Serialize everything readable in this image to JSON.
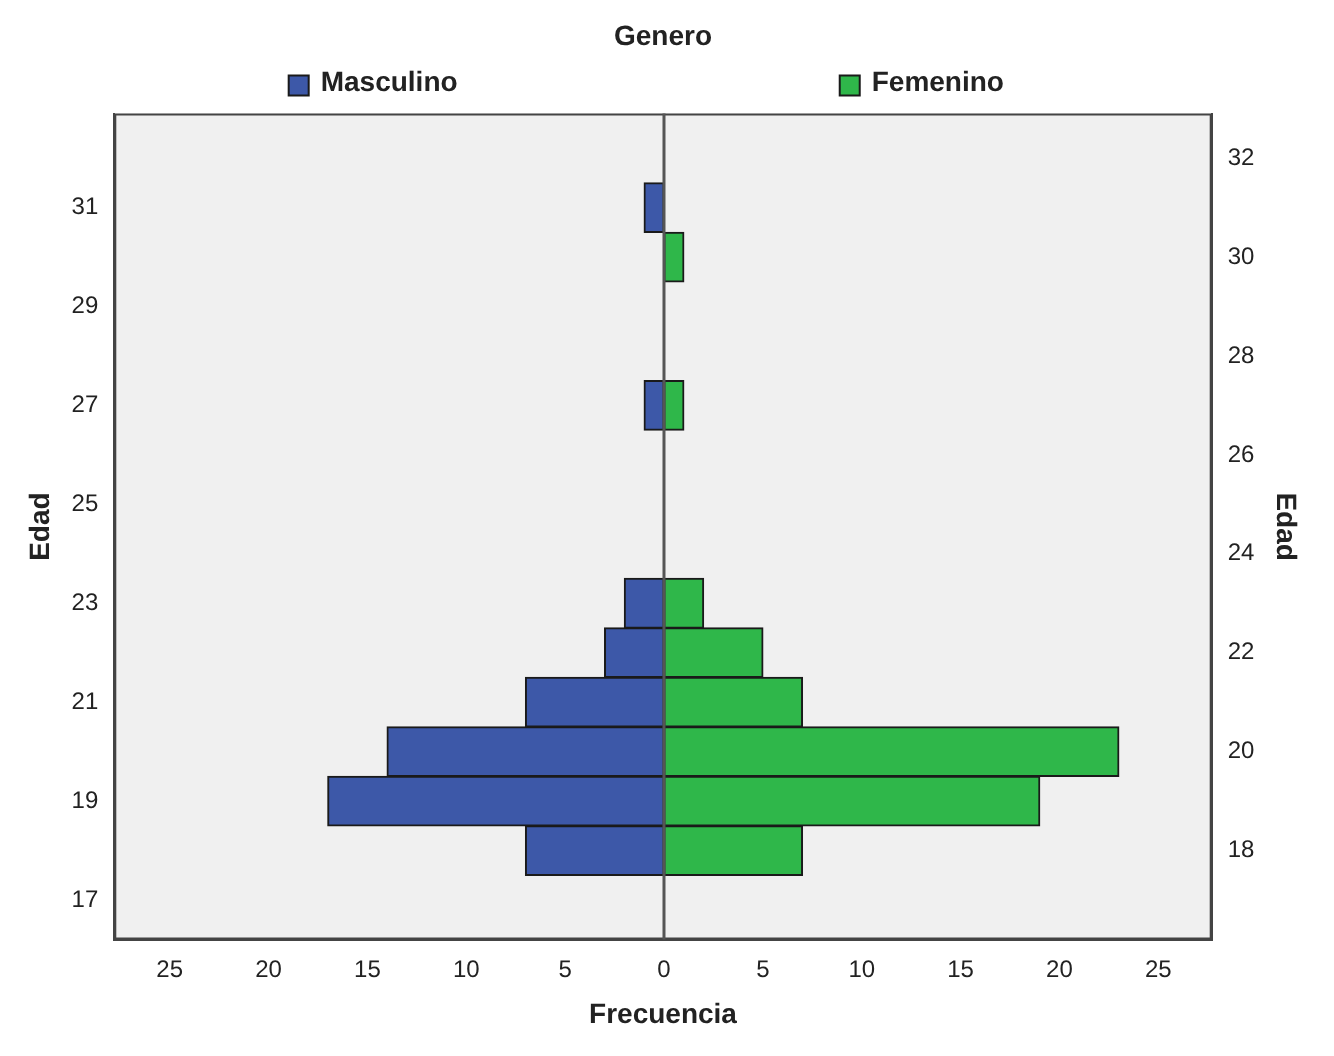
{
  "chart_data": {
    "type": "bar",
    "orientation": "horizontal",
    "stacked": true,
    "title": "Genero",
    "xlabel": "Frecuencia",
    "ylabel": "Edad",
    "y2label": "Edad",
    "xlim": [
      -27.8,
      27.7
    ],
    "xticks": [
      {
        "value": -25,
        "label": "25"
      },
      {
        "value": -20,
        "label": "20"
      },
      {
        "value": -15,
        "label": "15"
      },
      {
        "value": -10,
        "label": "10"
      },
      {
        "value": -5,
        "label": "5"
      },
      0,
      5,
      10,
      15,
      20,
      25
    ],
    "ylim": [
      16.2,
      32.9
    ],
    "yticks": [
      17,
      19,
      21,
      23,
      25,
      27,
      29,
      31
    ],
    "y2lim": [
      16.2,
      32.9
    ],
    "y2ticks": [
      18,
      20,
      22,
      24,
      26,
      28,
      30,
      32
    ],
    "series": [
      {
        "name": "Masculino",
        "color": "#3d58a8",
        "x": [
          18,
          19,
          20,
          21,
          22,
          23,
          27,
          31
        ],
        "values": [
          -7,
          -17,
          -14,
          -7,
          -3,
          -2,
          -1,
          -1
        ]
      },
      {
        "name": "Femenino",
        "color": "#2fb74a",
        "x": [
          18,
          19,
          20,
          21,
          22,
          23,
          27,
          30
        ],
        "values": [
          7,
          19,
          23,
          7,
          5,
          2,
          1,
          1
        ]
      }
    ],
    "ref_lines": [
      {
        "axis": "x",
        "value": 0,
        "color": "#555555"
      }
    ],
    "grid": false,
    "legend": "top"
  }
}
